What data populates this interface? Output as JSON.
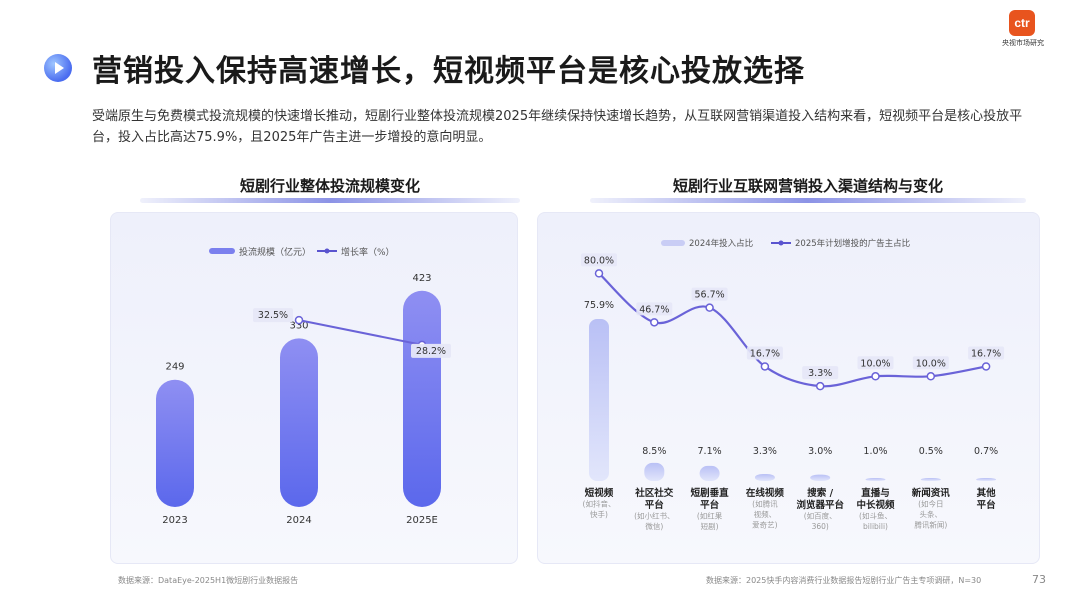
{
  "header": {
    "title": "营销投入保持高速增长，短视频平台是核心投放选择",
    "description": "受端原生与免费模式投流规模的快速增长推动，短剧行业整体投流规模2025年继续保持快速增长趋势，从互联网营销渠道投入结构来看，短视频平台是核心投放平台，投入占比高达75.9%，且2025年广告主进一步增投的意向明显。",
    "logo_mark": "ctr",
    "logo_text": "央视市场研究"
  },
  "left": {
    "title": "短剧行业整体投流规模变化",
    "source": "数据来源：DataEye-2025H1微短剧行业数据报告"
  },
  "right": {
    "title": "短剧行业互联网营销投入渠道结构与变化",
    "source": "数据来源：2025快手内容消费行业数据报告短剧行业广告主专项调研，N=30"
  },
  "page_number": "73",
  "colors": {
    "bar": "#7b80ee",
    "line": "#6a63d8",
    "title": "#1a1a1a",
    "accent_logo": "#e8541e"
  },
  "chart_data": [
    {
      "type": "bar",
      "categories": [
        "2023",
        "2024",
        "2025E"
      ],
      "series": [
        {
          "name": "投流规模（亿元）",
          "type": "bar",
          "values": [
            249,
            330,
            423
          ],
          "labels": [
            "249",
            "330",
            "423"
          ]
        },
        {
          "name": "增长率（%）",
          "type": "line",
          "values": [
            null,
            32.5,
            28.2
          ],
          "labels": [
            "",
            "32.5%",
            "28.2%"
          ]
        }
      ],
      "ylim": [
        0,
        450
      ],
      "y2lim": [
        0,
        40
      ],
      "legend": "top-center",
      "grid": false
    },
    {
      "type": "bar",
      "categories": [
        {
          "label": "短视频",
          "sub": [
            "(如抖音、",
            "快手)"
          ]
        },
        {
          "label": "社区社交",
          "label2": "平台",
          "sub": [
            "(如小红书、",
            "微信)"
          ]
        },
        {
          "label": "短剧垂直",
          "label2": "平台",
          "sub": [
            "(如红果",
            "短剧)"
          ]
        },
        {
          "label": "在线视频",
          "sub": [
            "(如腾讯",
            "视频、",
            "爱奇艺)"
          ]
        },
        {
          "label": "搜索 /",
          "label2": "浏览器平台",
          "sub": [
            "(如百度、",
            "360)"
          ]
        },
        {
          "label": "直播与",
          "label2": "中长视频",
          "sub": [
            "(如斗鱼、",
            "bilibili)"
          ]
        },
        {
          "label": "新闻资讯",
          "sub": [
            "(如今日",
            "头条、",
            "腾讯新闻)"
          ]
        },
        {
          "label": "其他",
          "label2": "平台",
          "sub": []
        }
      ],
      "series": [
        {
          "name": "2024年投入占比",
          "type": "bar",
          "values": [
            75.9,
            8.5,
            7.1,
            3.3,
            3.0,
            1.0,
            0.5,
            0.7
          ],
          "labels": [
            "75.9%",
            "8.5%",
            "7.1%",
            "3.3%",
            "3.0%",
            "1.0%",
            "0.5%",
            "0.7%"
          ]
        },
        {
          "name": "2025年计划增投的广告主占比",
          "type": "line",
          "values": [
            80.0,
            46.7,
            56.7,
            16.7,
            3.3,
            10.0,
            10.0,
            16.7
          ],
          "labels": [
            "80.0%",
            "46.7%",
            "56.7%",
            "16.7%",
            "3.3%",
            "10.0%",
            "10.0%",
            "16.7%"
          ]
        }
      ],
      "ylim": [
        0,
        100
      ],
      "legend": "top-left",
      "grid": false
    }
  ]
}
